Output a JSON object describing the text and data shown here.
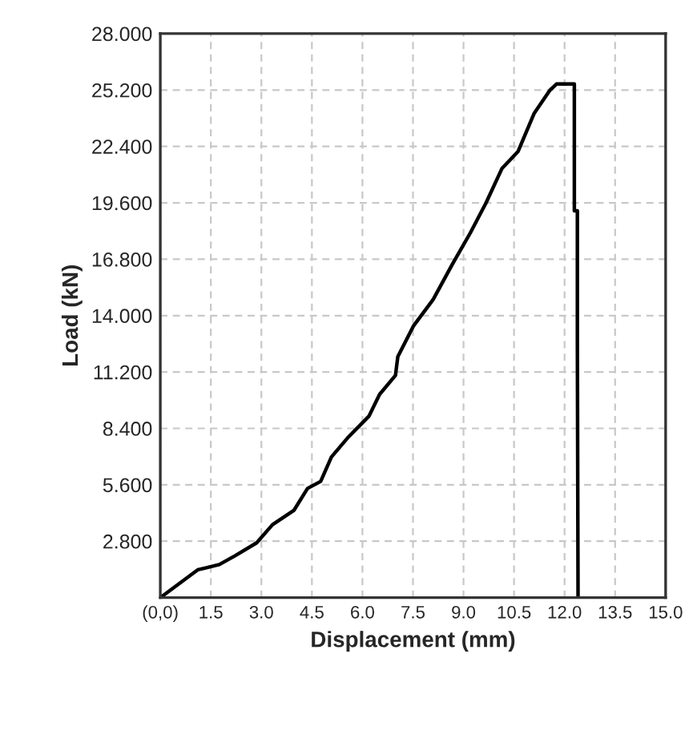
{
  "chart_data": {
    "type": "line",
    "xlabel": "Displacement (mm)",
    "ylabel": "Load (kN)",
    "series": [
      {
        "color": "#000000",
        "x": [
          0,
          1.11,
          1.75,
          2.22,
          2.86,
          3.33,
          3.97,
          4.37,
          4.76,
          5.08,
          5.56,
          6.19,
          6.51,
          6.98,
          7.05,
          7.52,
          8.1,
          8.67,
          9.2,
          9.67,
          10.14,
          10.62,
          11.1,
          11.57,
          11.76,
          12.29,
          12.29,
          12.38,
          12.38,
          12.4
        ],
        "values": [
          0,
          1.38,
          1.64,
          2.08,
          2.72,
          3.62,
          4.34,
          5.42,
          5.77,
          6.98,
          7.93,
          9.0,
          10.09,
          11.03,
          11.96,
          13.5,
          14.8,
          16.55,
          18.1,
          19.6,
          21.3,
          22.15,
          24.05,
          25.2,
          25.5,
          25.5,
          19.2,
          19.2,
          12.7,
          0
        ]
      }
    ],
    "xlim": [
      0,
      15
    ],
    "ylim": [
      0,
      28
    ],
    "xticks": [
      {
        "value": 0,
        "label": "(0,0)"
      },
      1.5,
      {
        "value": 3,
        "label": "3.0"
      },
      4.5,
      {
        "value": 6,
        "label": "6.0"
      },
      7.5,
      {
        "value": 9,
        "label": "9.0"
      },
      10.5,
      {
        "value": 12,
        "label": "12.0"
      },
      13.5,
      {
        "value": 15,
        "label": "15.0"
      }
    ],
    "yticks": [
      {
        "value": 0,
        "label": null
      },
      {
        "value": 2.8,
        "label": "2.800"
      },
      {
        "value": 5.6,
        "label": "5.600"
      },
      {
        "value": 8.4,
        "label": "8.400"
      },
      {
        "value": 11.2,
        "label": "11.200"
      },
      {
        "value": 14,
        "label": "14.000"
      },
      {
        "value": 16.8,
        "label": "16.800"
      },
      {
        "value": 19.6,
        "label": "19.600"
      },
      {
        "value": 22.4,
        "label": "22.400"
      },
      {
        "value": 25.2,
        "label": "25.200"
      },
      {
        "value": 28,
        "label": "28.000"
      }
    ],
    "grid": true,
    "line_style": "solid",
    "marker": "none"
  }
}
